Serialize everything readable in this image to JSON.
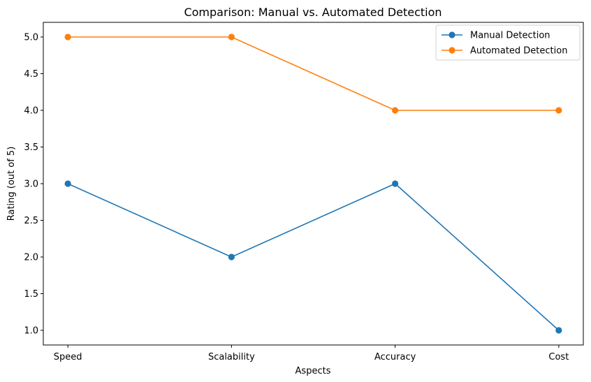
{
  "chart_data": {
    "type": "line",
    "title": "Comparison: Manual vs. Automated Detection",
    "xlabel": "Aspects",
    "ylabel": "Rating (out of 5)",
    "categories": [
      "Speed",
      "Scalability",
      "Accuracy",
      "Cost"
    ],
    "ylim": [
      0.8,
      5.2
    ],
    "yticks": [
      1.0,
      1.5,
      2.0,
      2.5,
      3.0,
      3.5,
      4.0,
      4.5,
      5.0
    ],
    "ytick_labels": [
      "1.0",
      "1.5",
      "2.0",
      "2.5",
      "3.0",
      "3.5",
      "4.0",
      "4.5",
      "5.0"
    ],
    "grid": false,
    "legend_position": "top-right",
    "series": [
      {
        "name": "Manual Detection",
        "color": "#1f77b4",
        "marker": "circle",
        "values": [
          3,
          2,
          3,
          1
        ]
      },
      {
        "name": "Automated Detection",
        "color": "#ff7f0e",
        "marker": "circle",
        "values": [
          5,
          5,
          4,
          4
        ]
      }
    ]
  }
}
